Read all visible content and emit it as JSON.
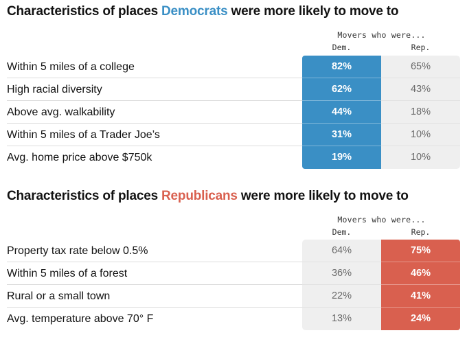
{
  "chart_data": [
    {
      "type": "table",
      "title_parts": [
        "Characteristics of places ",
        "Democrats",
        " were more likely to move to"
      ],
      "caption": "Movers who were...",
      "columns": [
        "Dem.",
        "Rep."
      ],
      "highlight": "Dem.",
      "rows": [
        {
          "label": "Within 5 miles of a college",
          "values": [
            "82%",
            "65%"
          ]
        },
        {
          "label": "High racial diversity",
          "values": [
            "62%",
            "43%"
          ]
        },
        {
          "label": "Above avg. walkability",
          "values": [
            "44%",
            "18%"
          ]
        },
        {
          "label": "Within 5 miles of a Trader Joe’s",
          "values": [
            "31%",
            "10%"
          ]
        },
        {
          "label": "Avg. home price above $750k",
          "values": [
            "19%",
            "10%"
          ]
        }
      ]
    },
    {
      "type": "table",
      "title_parts": [
        "Characteristics of places ",
        "Republicans",
        " were more likely to move to"
      ],
      "caption": "Movers who were...",
      "columns": [
        "Dem.",
        "Rep."
      ],
      "highlight": "Rep.",
      "rows": [
        {
          "label": "Property tax rate below 0.5%",
          "values": [
            "64%",
            "75%"
          ]
        },
        {
          "label": "Within 5 miles of a forest",
          "values": [
            "36%",
            "46%"
          ]
        },
        {
          "label": "Rural or a small town",
          "values": [
            "22%",
            "41%"
          ]
        },
        {
          "label": "Avg. temperature above 70° F",
          "values": [
            "13%",
            "24%"
          ]
        }
      ]
    }
  ],
  "colors": {
    "democrat": "#3a8fc5",
    "republican": "#d9604f",
    "neutral_bg": "#efefef"
  }
}
